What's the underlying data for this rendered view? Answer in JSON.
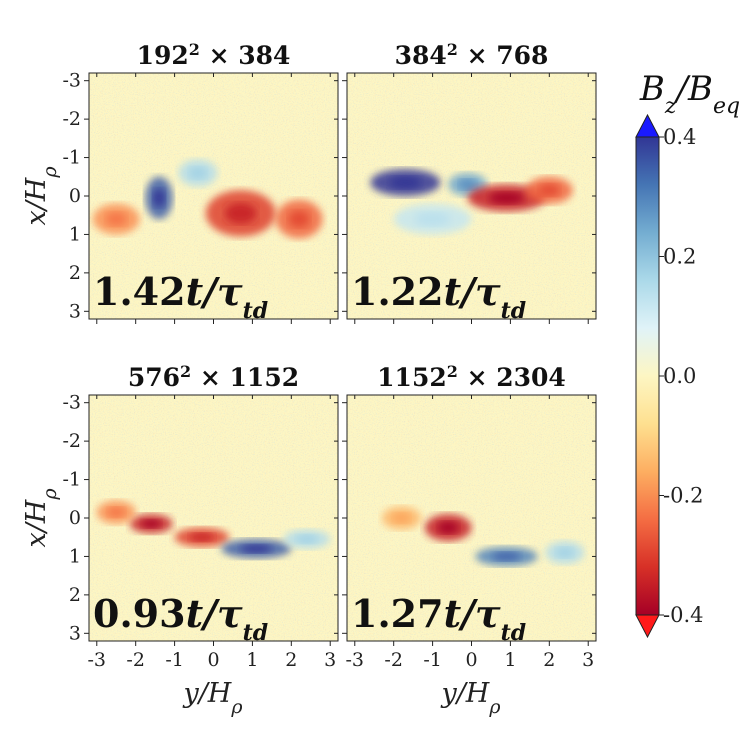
{
  "chart_data": {
    "type": "heatmap",
    "panels": [
      {
        "title_base": "192",
        "title_exp": "2",
        "title_rest": " × 384",
        "time_value": "1.42",
        "time_unit": "t/τ",
        "time_sub": "td",
        "features": [
          {
            "y": -1.4,
            "x": 0.05,
            "sy": 0.35,
            "sx": 0.55,
            "value": 0.35
          },
          {
            "y": 0.7,
            "x": 0.45,
            "sy": 0.9,
            "sx": 0.6,
            "value": -0.3
          },
          {
            "y": 2.2,
            "x": 0.6,
            "sy": 0.6,
            "sx": 0.5,
            "value": -0.25
          },
          {
            "y": -2.5,
            "x": 0.6,
            "sy": 0.6,
            "sx": 0.4,
            "value": -0.2
          },
          {
            "y": -0.4,
            "x": -0.6,
            "sy": 0.5,
            "sx": 0.35,
            "value": 0.15
          }
        ]
      },
      {
        "title_base": "384",
        "title_exp": "2",
        "title_rest": " × 768",
        "time_value": "1.22",
        "time_unit": "t/τ",
        "time_sub": "td",
        "features": [
          {
            "y": -1.7,
            "x": -0.35,
            "sy": 0.9,
            "sx": 0.35,
            "value": 0.4
          },
          {
            "y": -0.1,
            "x": -0.3,
            "sy": 0.5,
            "sx": 0.3,
            "value": 0.25
          },
          {
            "y": 0.9,
            "x": 0.05,
            "sy": 1.0,
            "sx": 0.35,
            "value": -0.35
          },
          {
            "y": 2.0,
            "x": -0.15,
            "sy": 0.6,
            "sx": 0.35,
            "value": -0.25
          },
          {
            "y": -1.0,
            "x": 0.6,
            "sy": 1.0,
            "sx": 0.4,
            "value": 0.12
          }
        ]
      },
      {
        "title_base": "576",
        "title_exp": "2",
        "title_rest": " × 1152",
        "time_value": "0.93",
        "time_unit": "t/τ",
        "time_sub": "td",
        "features": [
          {
            "y": -1.6,
            "x": 0.15,
            "sy": 0.55,
            "sx": 0.25,
            "value": -0.35
          },
          {
            "y": -0.3,
            "x": 0.5,
            "sy": 0.7,
            "sx": 0.25,
            "value": -0.3
          },
          {
            "y": 1.1,
            "x": 0.8,
            "sy": 0.9,
            "sx": 0.25,
            "value": 0.35
          },
          {
            "y": 2.4,
            "x": 0.55,
            "sy": 0.6,
            "sx": 0.25,
            "value": 0.15
          },
          {
            "y": -2.5,
            "x": -0.15,
            "sy": 0.5,
            "sx": 0.3,
            "value": -0.2
          }
        ]
      },
      {
        "title_base": "1152",
        "title_exp": "2",
        "title_rest": " × 2304",
        "time_value": "1.27",
        "time_unit": "t/τ",
        "time_sub": "td",
        "features": [
          {
            "y": -0.6,
            "x": 0.25,
            "sy": 0.6,
            "sx": 0.35,
            "value": -0.35
          },
          {
            "y": 0.9,
            "x": 1.0,
            "sy": 0.8,
            "sx": 0.25,
            "value": 0.3
          },
          {
            "y": -1.8,
            "x": 0.0,
            "sy": 0.5,
            "sx": 0.3,
            "value": -0.15
          },
          {
            "y": 2.4,
            "x": 0.9,
            "sy": 0.5,
            "sx": 0.3,
            "value": 0.15
          }
        ]
      }
    ],
    "x_axis": {
      "label": "y/H",
      "sub": "ρ",
      "ticks": [
        "-3",
        "-2",
        "-1",
        "0",
        "1",
        "2",
        "3"
      ],
      "range": [
        -3.2,
        3.2
      ]
    },
    "y_axis": {
      "label": "x/H",
      "sub": "ρ",
      "ticks": [
        "-3",
        "-2",
        "-1",
        "0",
        "1",
        "2",
        "3"
      ],
      "range": [
        -3.2,
        3.2
      ]
    },
    "colorbar": {
      "label_base": "B",
      "label_num_sub": "z",
      "label_den": "B",
      "label_den_sub": "eq",
      "range": [
        -0.4,
        0.4
      ],
      "ticks": [
        "0.4",
        "0.2",
        "0.0",
        "-0.2",
        "-0.4"
      ],
      "tick_values": [
        0.4,
        0.2,
        0.0,
        -0.2,
        -0.4
      ],
      "extend": "both",
      "colormap": "RdYlBu_r"
    },
    "colors": {
      "neg_max": "#a50026",
      "neg": "#f46d43",
      "mid": "#fdf6c3",
      "pos": "#74add1",
      "pos_max": "#313695",
      "over": "#1a1aff",
      "under": "#ff1a1a"
    }
  }
}
